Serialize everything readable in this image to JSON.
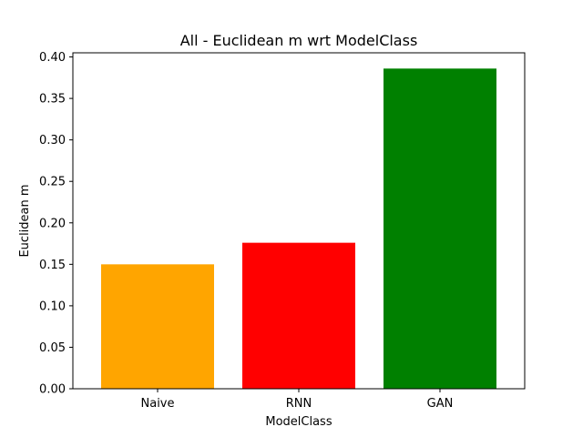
{
  "chart_data": {
    "type": "bar",
    "title": "All - Euclidean m wrt ModelClass",
    "xlabel": "ModelClass",
    "ylabel": "Euclidean m",
    "categories": [
      "Naive",
      "RNN",
      "GAN"
    ],
    "values": [
      0.15,
      0.176,
      0.386
    ],
    "colors": [
      "#ffa500",
      "#ff0000",
      "#008000"
    ],
    "ylim": [
      0,
      0.405
    ],
    "yticks": [
      0.0,
      0.05,
      0.1,
      0.15,
      0.2,
      0.25,
      0.3,
      0.35,
      0.4
    ],
    "ytick_labels": [
      "0.00",
      "0.05",
      "0.10",
      "0.15",
      "0.20",
      "0.25",
      "0.30",
      "0.35",
      "0.40"
    ],
    "grid": false,
    "legend": "none"
  }
}
